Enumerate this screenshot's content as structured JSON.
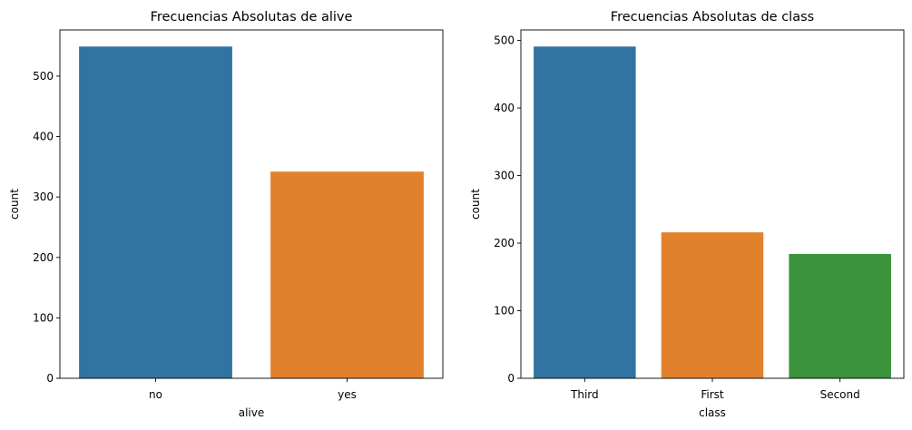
{
  "chart_data": [
    {
      "type": "bar",
      "title": "Frecuencias Absolutas de alive",
      "xlabel": "alive",
      "ylabel": "count",
      "categories": [
        "no",
        "yes"
      ],
      "values": [
        549,
        342
      ],
      "colors": [
        "#3274a1",
        "#e1812c"
      ],
      "ylim": [
        0,
        576.45
      ],
      "yticks": [
        0,
        100,
        200,
        300,
        400,
        500
      ],
      "grid": false
    },
    {
      "type": "bar",
      "title": "Frecuencias Absolutas de class",
      "xlabel": "class",
      "ylabel": "count",
      "categories": [
        "Third",
        "First",
        "Second"
      ],
      "values": [
        491,
        216,
        184
      ],
      "colors": [
        "#3274a1",
        "#e1812c",
        "#3a923a"
      ],
      "ylim": [
        0,
        515.55
      ],
      "yticks": [
        0,
        100,
        200,
        300,
        400,
        500
      ],
      "grid": false
    }
  ]
}
